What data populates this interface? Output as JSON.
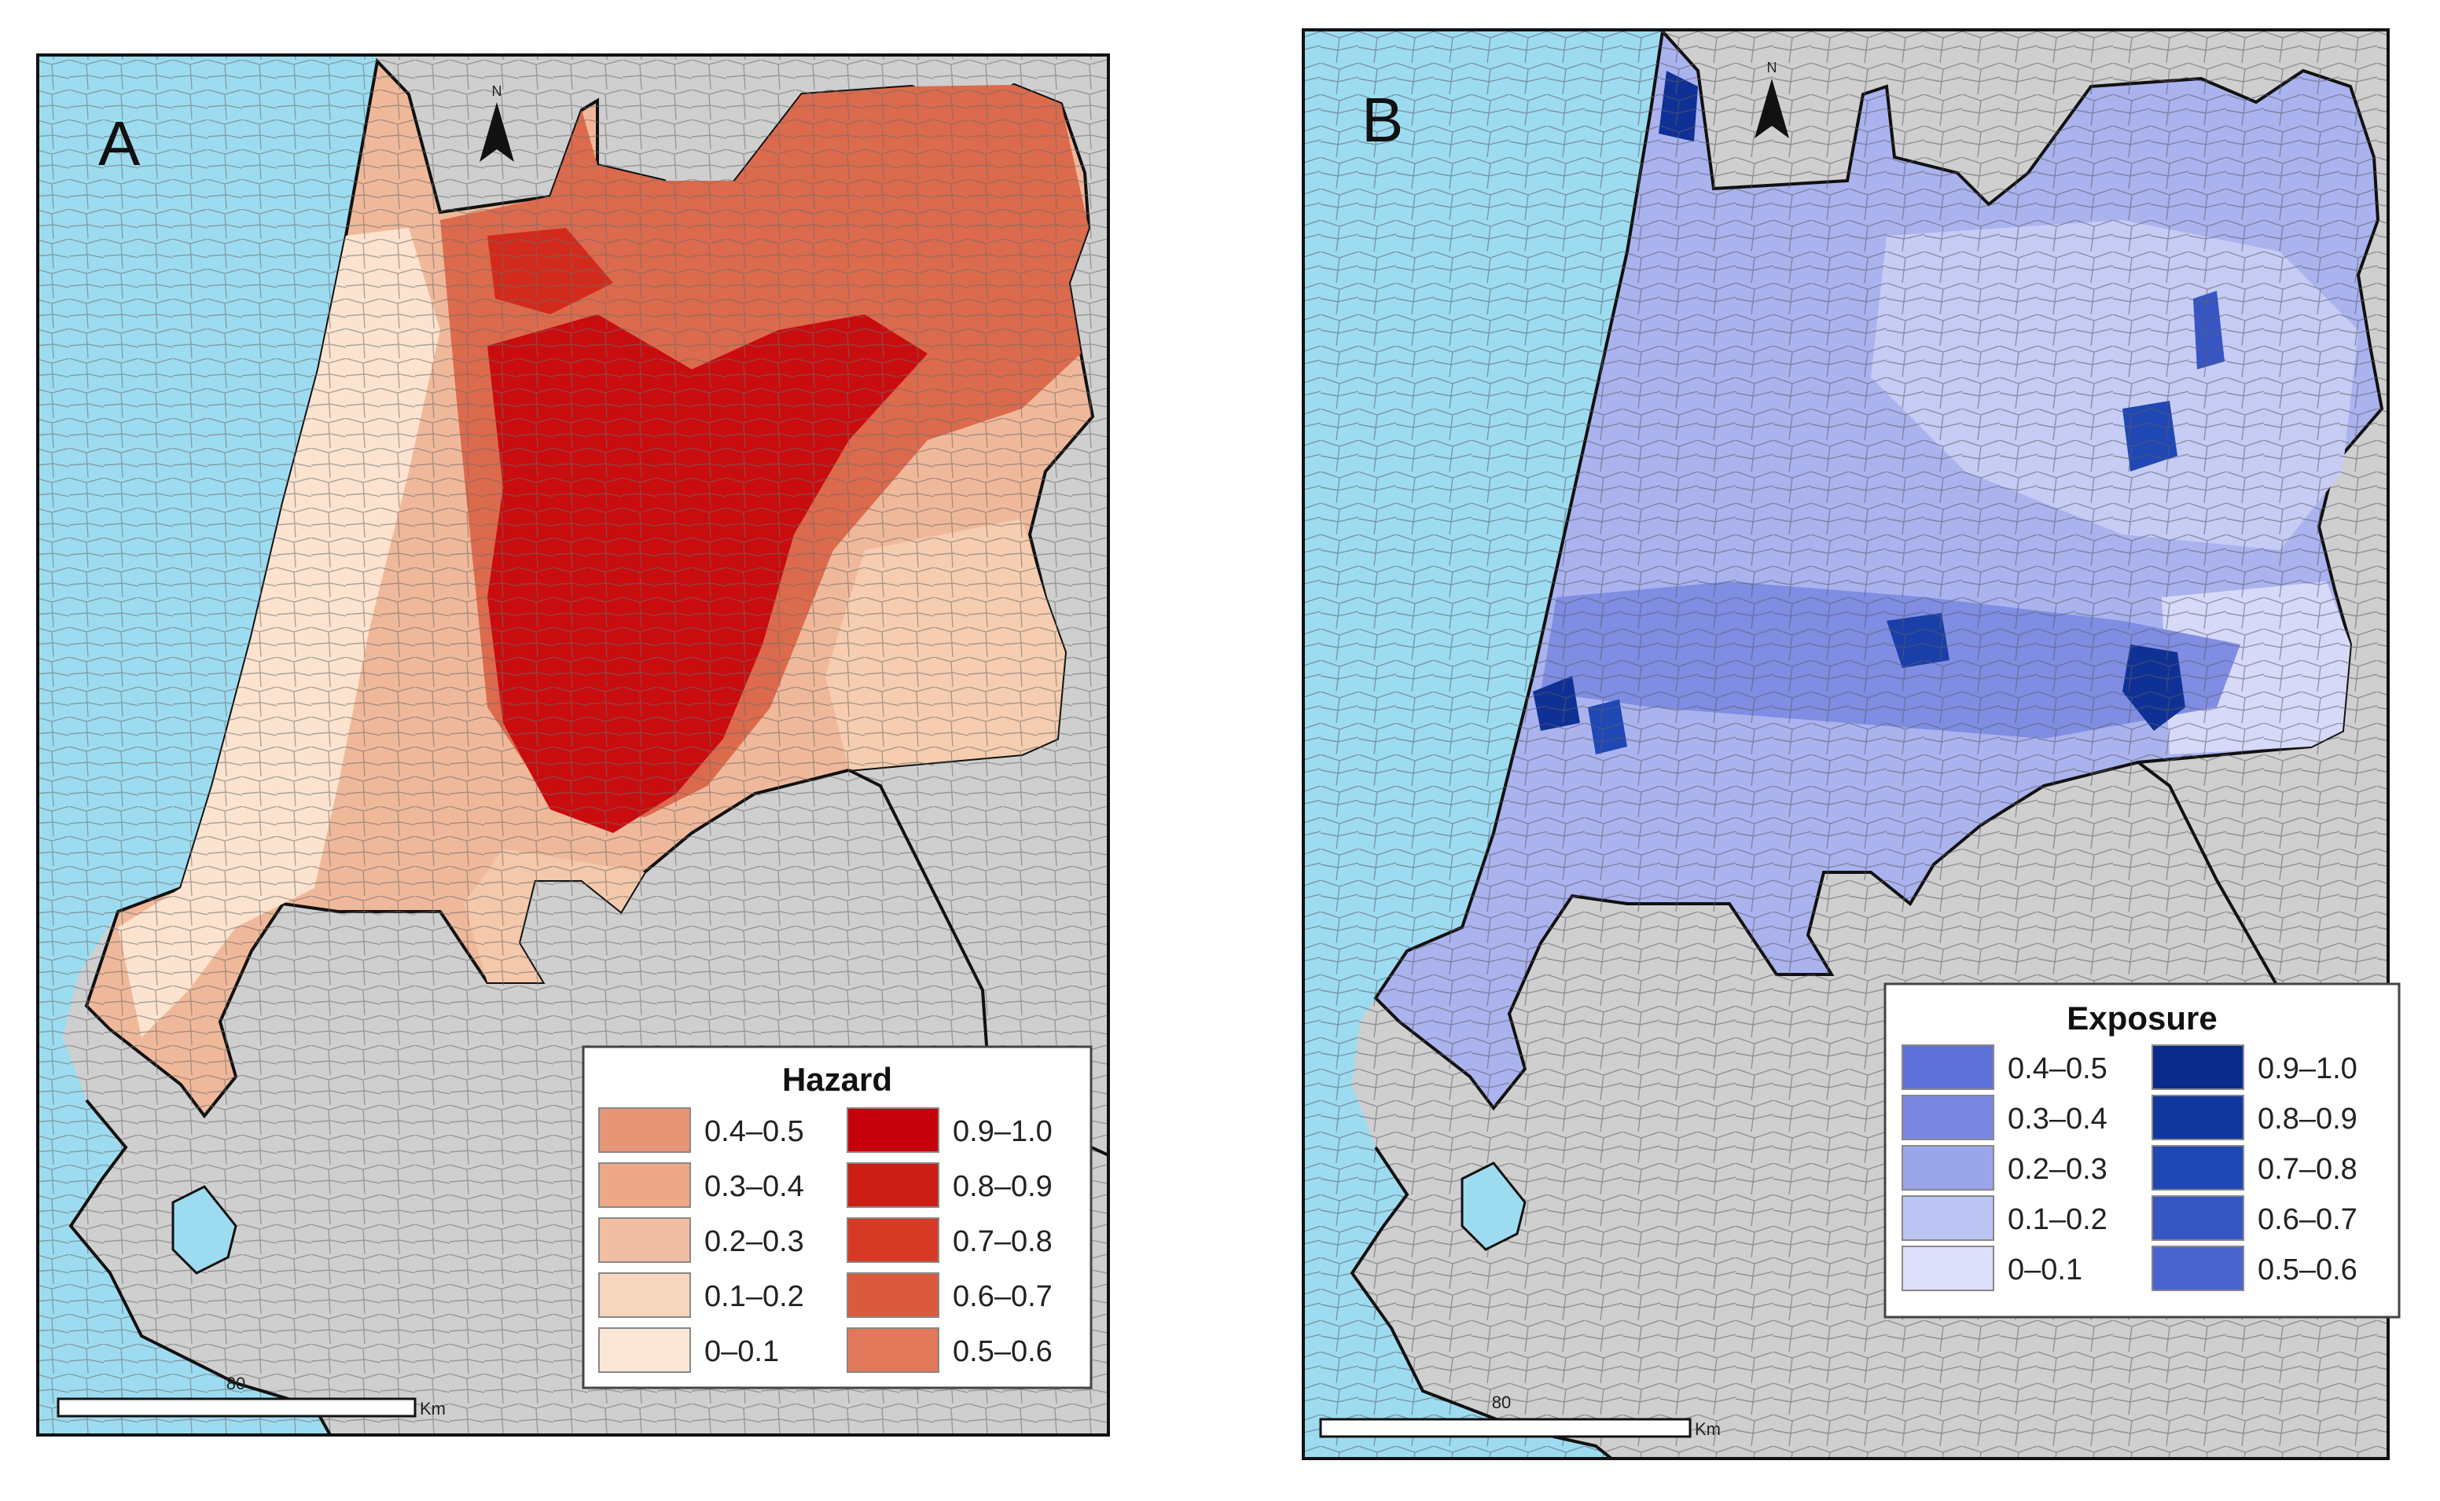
{
  "colors": {
    "sea": "#9ddcf0",
    "land_outside": "#cfcfcf",
    "frame": "#111111",
    "unit_border": "#555555"
  },
  "panel_a": {
    "label": "A",
    "legend": {
      "title": "Hazard",
      "left_column": [
        {
          "label": "0.4–0.5",
          "color": "#e69676"
        },
        {
          "label": "0.3–0.4",
          "color": "#eca889"
        },
        {
          "label": "0.2–0.3",
          "color": "#f1bea3"
        },
        {
          "label": "0.1–0.2",
          "color": "#f6d6bf"
        },
        {
          "label": "0–0.1",
          "color": "#fbe7d6"
        }
      ],
      "right_column": [
        {
          "label": "0.9–1.0",
          "color": "#c4000a"
        },
        {
          "label": "0.8–0.9",
          "color": "#cc1e14"
        },
        {
          "label": "0.7–0.8",
          "color": "#d63a24"
        },
        {
          "label": "0.6–0.7",
          "color": "#db5a3e"
        },
        {
          "label": "0.5–0.6",
          "color": "#e1785a"
        }
      ]
    },
    "scale_bar": {
      "value": "80",
      "unit": "Km"
    },
    "north": "N"
  },
  "panel_b": {
    "label": "B",
    "legend": {
      "title": "Exposure",
      "left_column": [
        {
          "label": "0.4–0.5",
          "color": "#5f6fd8"
        },
        {
          "label": "0.3–0.4",
          "color": "#7a88e2"
        },
        {
          "label": "0.2–0.3",
          "color": "#9ba6ea"
        },
        {
          "label": "0.1–0.2",
          "color": "#bcc4f3"
        },
        {
          "label": "0–0.1",
          "color": "#dde0fb"
        }
      ],
      "right_column": [
        {
          "label": "0.9–1.0",
          "color": "#0b2a8a"
        },
        {
          "label": "0.8–0.9",
          "color": "#12379c"
        },
        {
          "label": "0.7–0.8",
          "color": "#1f48b4"
        },
        {
          "label": "0.6–0.7",
          "color": "#3656c4"
        },
        {
          "label": "0.5–0.6",
          "color": "#4a63cf"
        }
      ]
    },
    "scale_bar": {
      "value": "80",
      "unit": "Km"
    },
    "north": "N"
  }
}
